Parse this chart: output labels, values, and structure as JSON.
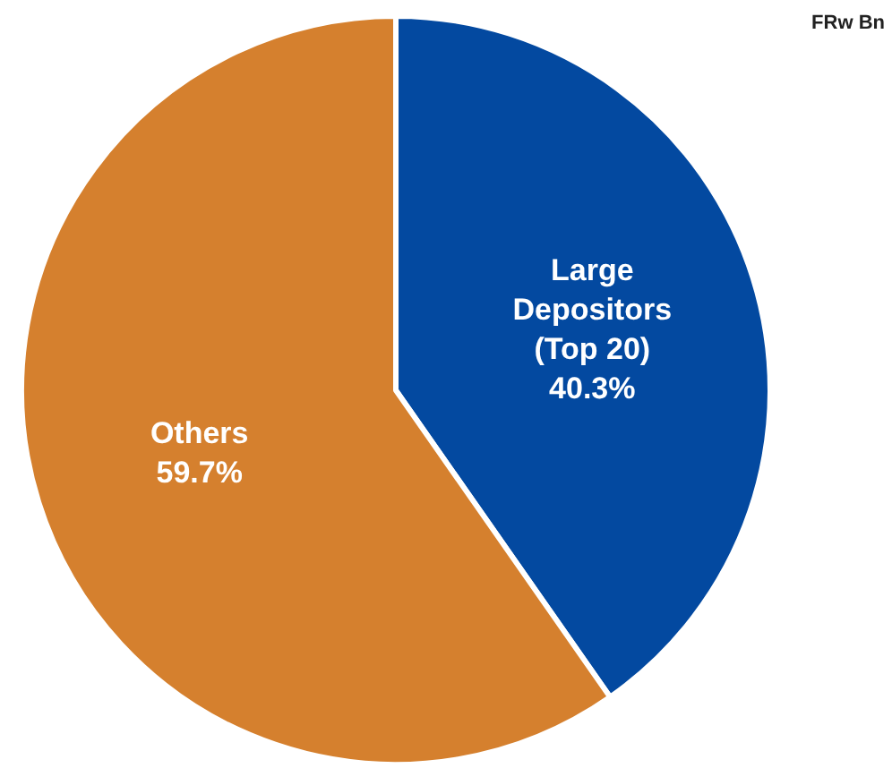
{
  "chart_data": {
    "type": "pie",
    "categories": [
      "Large Depositors (Top 20)",
      "Others"
    ],
    "values": [
      40.3,
      59.7
    ],
    "colors": [
      "#0349a0",
      "#d5802e"
    ],
    "value_labels": [
      "40.3%",
      "59.7%"
    ],
    "annotations": [
      "FRw Bn"
    ]
  }
}
